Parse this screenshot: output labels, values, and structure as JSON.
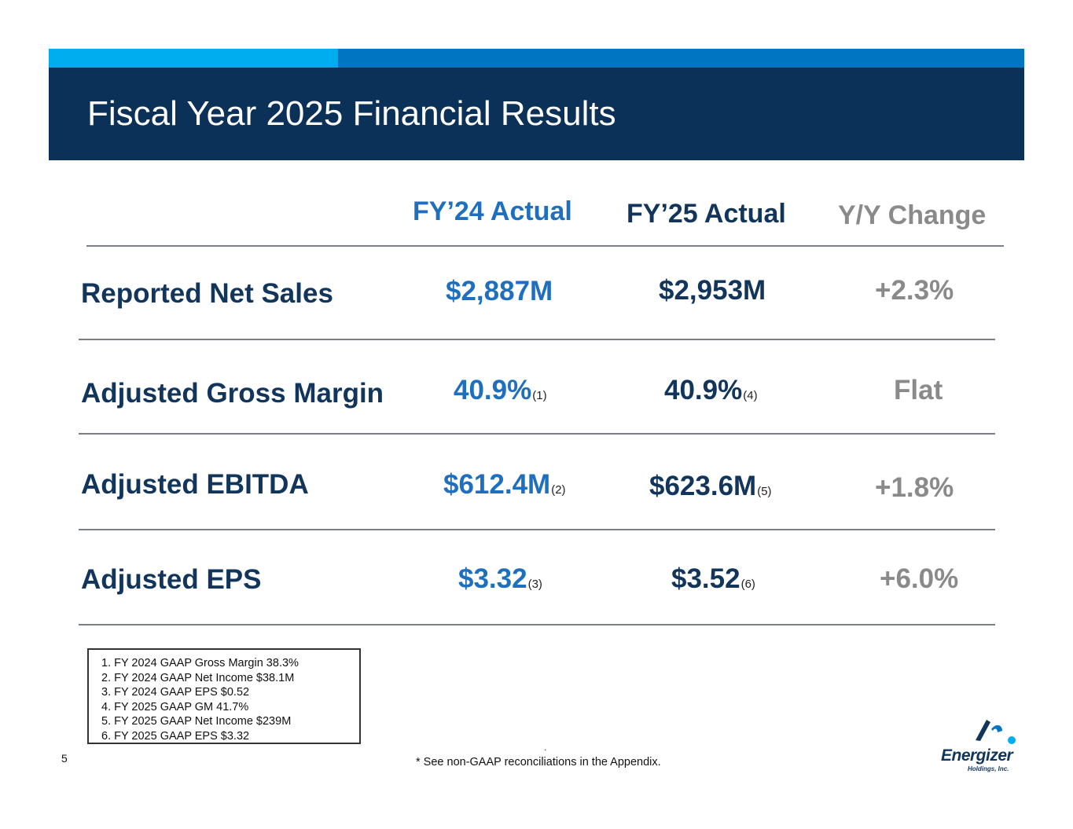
{
  "header": {
    "title": "Fiscal Year 2025 Financial Results"
  },
  "columns": {
    "fy24": "FY’24 Actual",
    "fy25": "FY’25 Actual",
    "change": "Y/Y Change"
  },
  "rows": [
    {
      "label": "Reported Net Sales",
      "fy24": "$2,887M",
      "fy24_note": "",
      "fy25": "$2,953M",
      "fy25_note": "",
      "change": "+2.3%"
    },
    {
      "label": "Adjusted Gross Margin",
      "fy24": "40.9%",
      "fy24_note": "(1)",
      "fy25": "40.9%",
      "fy25_note": "(4)",
      "change": "Flat"
    },
    {
      "label": "Adjusted EBITDA",
      "fy24": "$612.4M",
      "fy24_note": "(2)",
      "fy25": "$623.6M",
      "fy25_note": "(5)",
      "change": "+1.8%"
    },
    {
      "label": "Adjusted EPS",
      "fy24": "$3.32",
      "fy24_note": "(3)",
      "fy25": "$3.52",
      "fy25_note": "(6)",
      "change": "+6.0%"
    }
  ],
  "footnotes": [
    "1. FY 2024 GAAP Gross Margin 38.3%",
    "2. FY 2024 GAAP Net Income $38.1M",
    "3. FY 2024 GAAP EPS $0.52",
    "4. FY 2025 GAAP GM 41.7%",
    "5. FY 2025 GAAP Net Income $239M",
    "6. FY 2025 GAAP EPS $3.32"
  ],
  "footer": {
    "page_number": "5",
    "dot": ".",
    "note": "* See non-GAAP reconciliations in the Appendix."
  },
  "logo": {
    "name": "Energizer",
    "subtitle": "Holdings, Inc.",
    "icon": "energizer-logo-icon"
  },
  "colors": {
    "header_bg": "#0b3158",
    "accent_light": "#00aeef",
    "accent_mid": "#0075c2",
    "fy24_blue": "#1f6fbf",
    "navy": "#12355b",
    "gray": "#8a8a8a"
  }
}
